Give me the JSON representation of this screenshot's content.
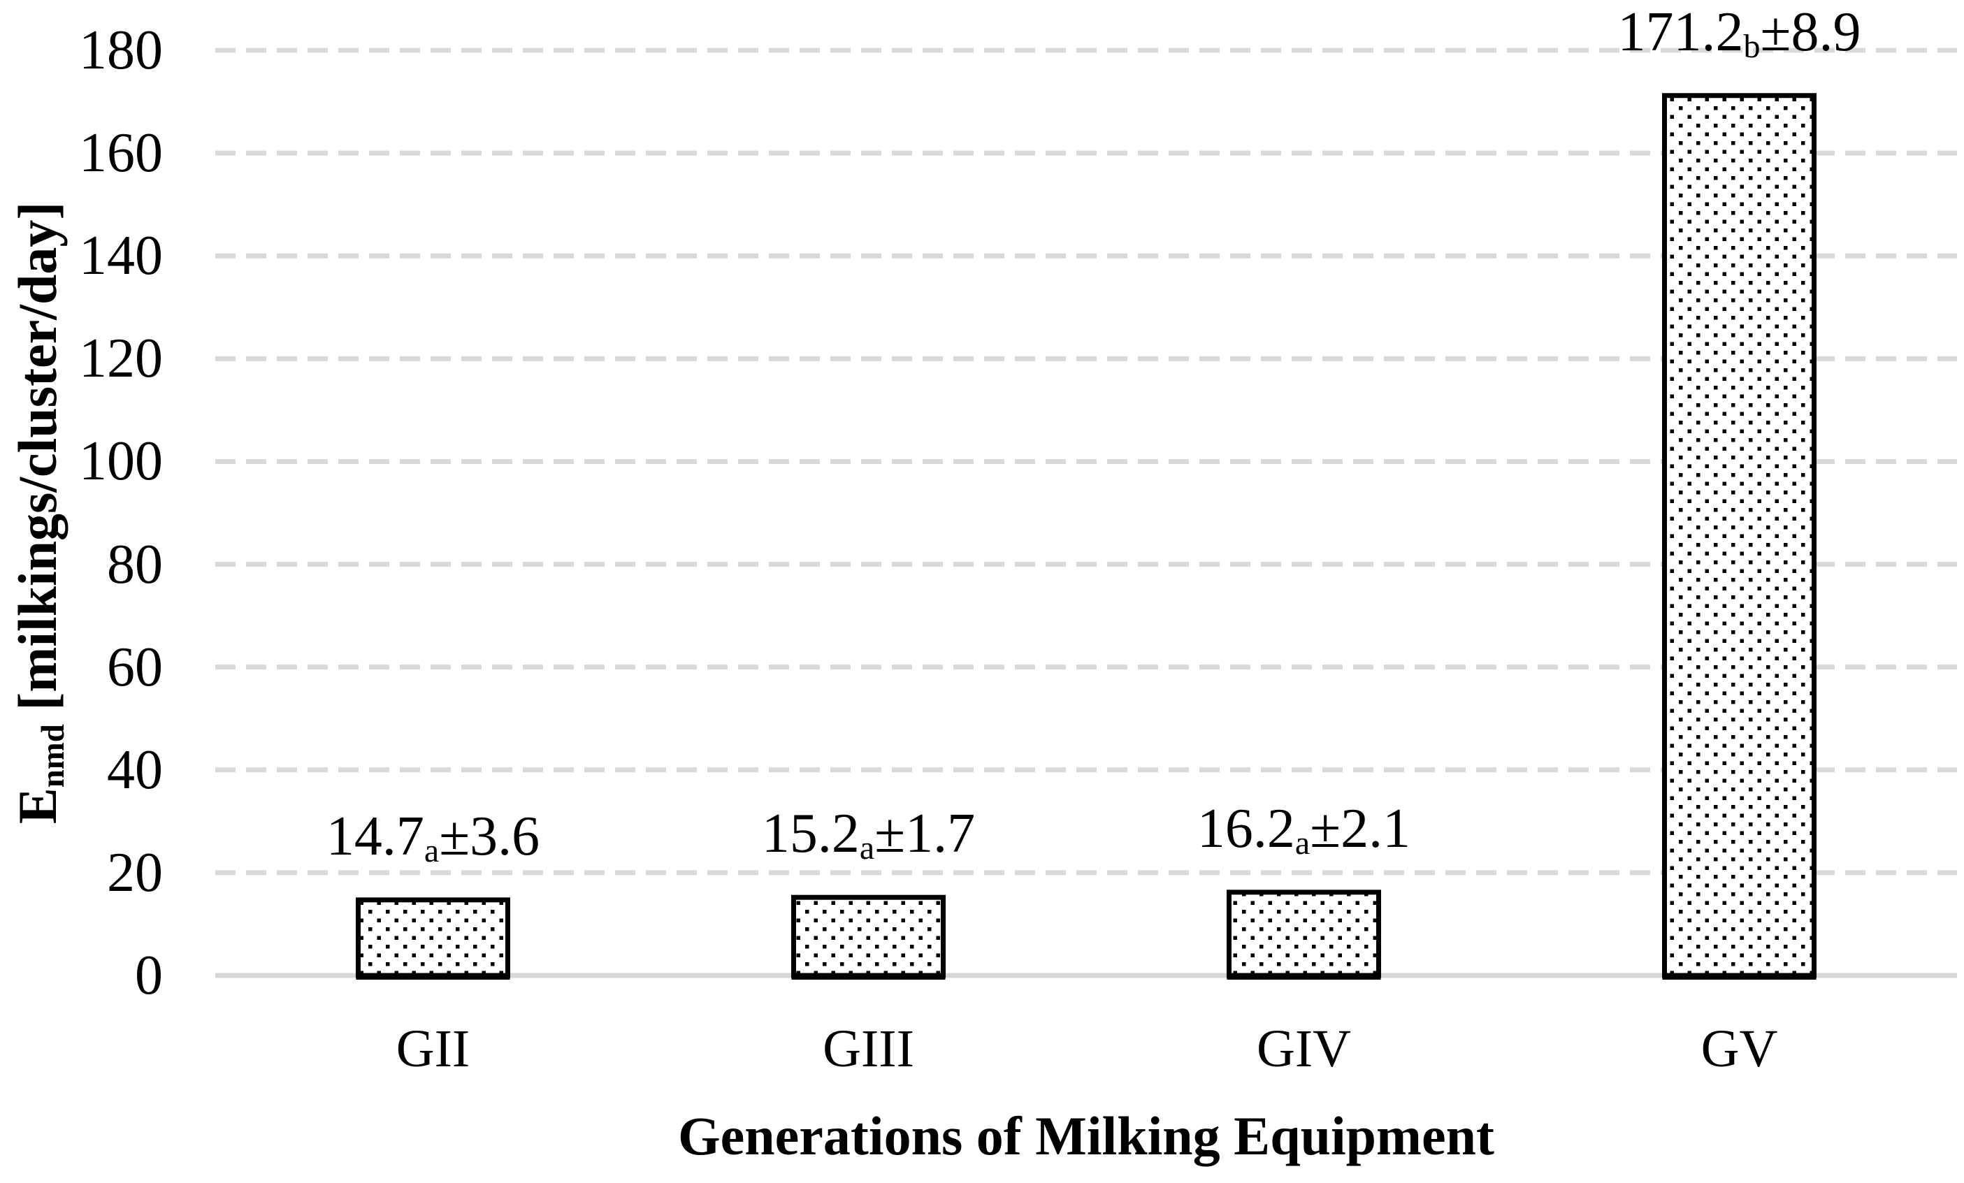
{
  "figure": {
    "background": "#ffffff",
    "text_color": "#000000",
    "gridline_color": "#d9d9d9",
    "baseline_color": "#d6d6d6",
    "bar_border_color": "#000000",
    "bar_fill_pattern": "offset-black-square-dots-on-white",
    "bar_shadow_color": "#000000"
  },
  "chart_data": {
    "type": "bar",
    "title": "",
    "categories": [
      "GII",
      "GIII",
      "GIV",
      "GV"
    ],
    "values": [
      14.7,
      15.2,
      16.2,
      171.2
    ],
    "std_devs": [
      3.6,
      1.7,
      2.1,
      8.9
    ],
    "significance_letters": [
      "a",
      "a",
      "a",
      "b"
    ],
    "data_labels": [
      {
        "value_text": "14.7",
        "superscript": "a",
        "sd_text": "±3.6"
      },
      {
        "value_text": "15.2",
        "superscript": "a",
        "sd_text": "±1.7"
      },
      {
        "value_text": "16.2",
        "superscript": "a",
        "sd_text": "±2.1"
      },
      {
        "value_text": "171.2",
        "superscript": "b",
        "sd_text": "±8.9"
      }
    ],
    "xlabel": "Generations of Milking Equipment",
    "ylabel_main": "E",
    "ylabel_sub": "nmd",
    "ylabel_rest": " [milkings/cluster/day]",
    "ylim": [
      0,
      180
    ],
    "ytick_step": 20,
    "yticks": [
      0,
      20,
      40,
      60,
      80,
      100,
      120,
      140,
      160,
      180
    ],
    "grid": "horizontal-dashed",
    "legend": "none"
  }
}
